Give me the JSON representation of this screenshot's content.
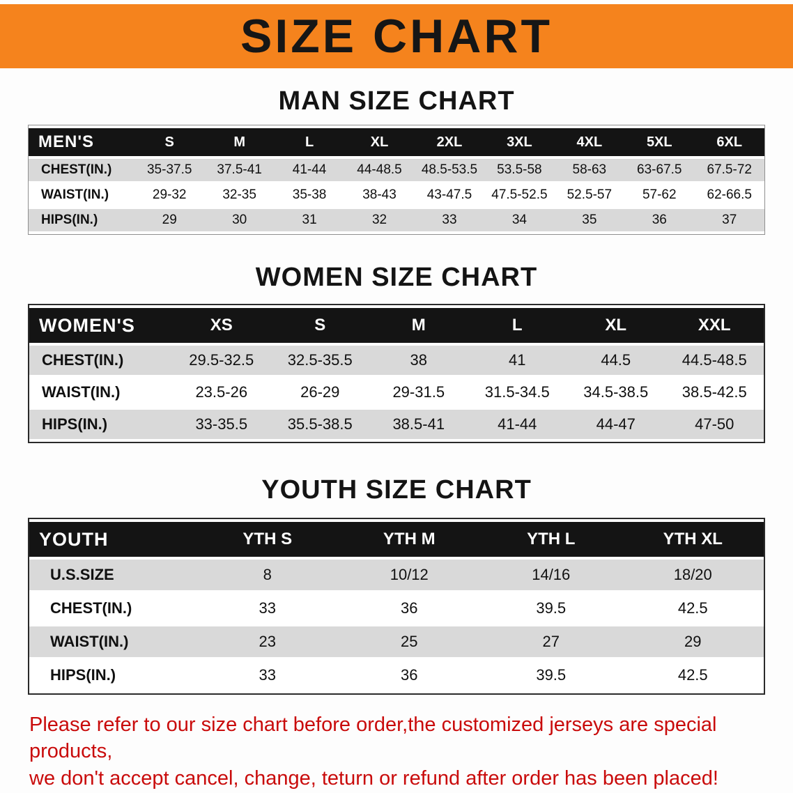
{
  "banner": {
    "title": "SIZE CHART"
  },
  "colors": {
    "banner_bg": "#f5831d",
    "header_bg": "#141414",
    "stripe": "#d9d9d9",
    "footer_red": "#c90b0b"
  },
  "men": {
    "heading": "MAN SIZE CHART",
    "header": [
      "MEN'S",
      "S",
      "M",
      "L",
      "XL",
      "2XL",
      "3XL",
      "4XL",
      "5XL",
      "6XL"
    ],
    "rows": [
      {
        "label": "CHEST(IN.)",
        "values": [
          "35-37.5",
          "37.5-41",
          "41-44",
          "44-48.5",
          "48.5-53.5",
          "53.5-58",
          "58-63",
          "63-67.5",
          "67.5-72"
        ]
      },
      {
        "label": "WAIST(IN.)",
        "values": [
          "29-32",
          "32-35",
          "35-38",
          "38-43",
          "43-47.5",
          "47.5-52.5",
          "52.5-57",
          "57-62",
          "62-66.5"
        ]
      },
      {
        "label": "HIPS(IN.)",
        "values": [
          "29",
          "30",
          "31",
          "32",
          "33",
          "34",
          "35",
          "36",
          "37"
        ]
      }
    ]
  },
  "women": {
    "heading": "WOMEN SIZE CHART",
    "header": [
      "WOMEN'S",
      "XS",
      "S",
      "M",
      "L",
      "XL",
      "XXL"
    ],
    "rows": [
      {
        "label": "CHEST(IN.)",
        "values": [
          "29.5-32.5",
          "32.5-35.5",
          "38",
          "41",
          "44.5",
          "44.5-48.5"
        ]
      },
      {
        "label": "WAIST(IN.)",
        "values": [
          "23.5-26",
          "26-29",
          "29-31.5",
          "31.5-34.5",
          "34.5-38.5",
          "38.5-42.5"
        ]
      },
      {
        "label": "HIPS(IN.)",
        "values": [
          "33-35.5",
          "35.5-38.5",
          "38.5-41",
          "41-44",
          "44-47",
          "47-50"
        ]
      }
    ]
  },
  "youth": {
    "heading": "YOUTH SIZE CHART",
    "header": [
      "YOUTH",
      "YTH S",
      "YTH M",
      "YTH L",
      "YTH XL"
    ],
    "rows": [
      {
        "label": "U.S.SIZE",
        "values": [
          "8",
          "10/12",
          "14/16",
          "18/20"
        ]
      },
      {
        "label": "CHEST(IN.)",
        "values": [
          "33",
          "36",
          "39.5",
          "42.5"
        ]
      },
      {
        "label": "WAIST(IN.)",
        "values": [
          "23",
          "25",
          "27",
          "29"
        ]
      },
      {
        "label": "HIPS(IN.)",
        "values": [
          "33",
          "36",
          "39.5",
          "42.5"
        ]
      }
    ]
  },
  "footer": {
    "line1": "Please refer to our size chart before order,the customized jerseys are special products,",
    "line2": "we don't accept cancel, change, teturn or refund after order has been placed!"
  }
}
